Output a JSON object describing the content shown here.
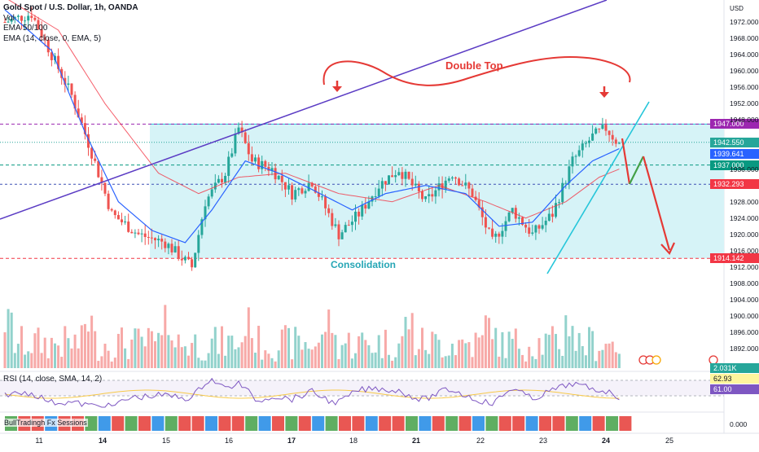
{
  "header": {
    "title": "Gold Spot / U.S. Dollar, 1h, OANDA",
    "indicators": [
      "Vol",
      "EMA 50/100",
      "EMA (14, close, 0, EMA, 5)"
    ]
  },
  "currency": "USD",
  "rsi_label": "RSI (14, close, SMA, 14, 2)",
  "session_label": "BullTradingh Fx Sessions",
  "annotations": {
    "double_top": "Double Top",
    "consolidation": "Consolidation"
  },
  "price_tags": [
    {
      "text": "1947.000",
      "value": 1947.0,
      "color": "#9c27b0"
    },
    {
      "text": "1942.550",
      "value": 1942.55,
      "color": "#26a69a"
    },
    {
      "text": "1939.641",
      "value": 1939.641,
      "color": "#2962ff"
    },
    {
      "text": "1937.000",
      "value": 1937.0,
      "color": "#089981"
    },
    {
      "text": "1932.293",
      "value": 1932.293,
      "color": "#f23645"
    },
    {
      "text": "1914.142",
      "value": 1914.142,
      "color": "#f23645"
    }
  ],
  "price_axis_ticks": [
    "1972.000",
    "1968.000",
    "1964.000",
    "1960.000",
    "1956.000",
    "1952.000",
    "1948.000",
    "1936.000",
    "1928.000",
    "1924.000",
    "1920.000",
    "1916.000",
    "1912.000",
    "1908.000",
    "1904.000",
    "1900.000",
    "1896.000",
    "1892.000"
  ],
  "volume_tag": "2.031K",
  "rsi_tags": [
    {
      "text": "62.93",
      "color": "#fff59d",
      "textColor": "#131722"
    },
    {
      "text": "61.00",
      "color": "#7e57c2",
      "textColor": "#ffffff"
    }
  ],
  "session_value": "0.000",
  "colors": {
    "up": "#26a69a",
    "down": "#ef5350",
    "zone": "#d6f3f7",
    "trendline": "#5b3cc4",
    "ema_fast": "#2962ff",
    "ema_slow": "#f23645",
    "support_line": "#26c6da",
    "arrow_red": "#e53935",
    "arrow_green": "#43a047"
  },
  "chart_data": {
    "type": "candlestick",
    "title": "Gold Spot / U.S. Dollar, 1h, OANDA",
    "x_ticks": [
      "11",
      "14",
      "15",
      "16",
      "17",
      "18",
      "21",
      "22",
      "23",
      "24",
      "25"
    ],
    "y_range": [
      1888,
      1976
    ],
    "levels": [
      1947.0,
      1937.0,
      1932.293,
      1914.142
    ],
    "zone": [
      1947.0,
      1914.142
    ],
    "anchors": [
      [
        0,
        1972
      ],
      [
        8,
        1974
      ],
      [
        14,
        1964
      ],
      [
        20,
        1954
      ],
      [
        26,
        1940
      ],
      [
        32,
        1925
      ],
      [
        40,
        1920
      ],
      [
        48,
        1918
      ],
      [
        56,
        1912
      ],
      [
        60,
        1928
      ],
      [
        66,
        1935
      ],
      [
        70,
        1946
      ],
      [
        74,
        1938
      ],
      [
        80,
        1936
      ],
      [
        86,
        1930
      ],
      [
        92,
        1933
      ],
      [
        100,
        1920
      ],
      [
        106,
        1925
      ],
      [
        112,
        1932
      ],
      [
        118,
        1936
      ],
      [
        126,
        1928
      ],
      [
        134,
        1935
      ],
      [
        140,
        1930
      ],
      [
        146,
        1918
      ],
      [
        152,
        1926
      ],
      [
        158,
        1920
      ],
      [
        164,
        1925
      ],
      [
        170,
        1938
      ],
      [
        176,
        1944
      ],
      [
        180,
        1946
      ],
      [
        184,
        1942
      ]
    ],
    "ema_fast_anchors": [
      [
        0,
        1975
      ],
      [
        14,
        1965
      ],
      [
        24,
        1945
      ],
      [
        34,
        1928
      ],
      [
        44,
        1921
      ],
      [
        54,
        1918
      ],
      [
        62,
        1926
      ],
      [
        72,
        1938
      ],
      [
        82,
        1935
      ],
      [
        92,
        1931
      ],
      [
        104,
        1926
      ],
      [
        114,
        1930
      ],
      [
        126,
        1932
      ],
      [
        138,
        1930
      ],
      [
        148,
        1922
      ],
      [
        158,
        1923
      ],
      [
        168,
        1932
      ],
      [
        176,
        1938
      ],
      [
        184,
        1941
      ]
    ],
    "ema_slow_anchors": [
      [
        0,
        1978
      ],
      [
        16,
        1970
      ],
      [
        30,
        1952
      ],
      [
        46,
        1935
      ],
      [
        58,
        1930
      ],
      [
        70,
        1934
      ],
      [
        84,
        1935
      ],
      [
        100,
        1930
      ],
      [
        116,
        1928
      ],
      [
        130,
        1932
      ],
      [
        144,
        1928
      ],
      [
        156,
        1924
      ],
      [
        168,
        1928
      ],
      [
        178,
        1934
      ],
      [
        184,
        1936
      ]
    ],
    "projection": [
      [
        1941,
        0
      ],
      [
        1932,
        1
      ],
      [
        1937,
        2
      ],
      [
        1916,
        3
      ]
    ]
  }
}
